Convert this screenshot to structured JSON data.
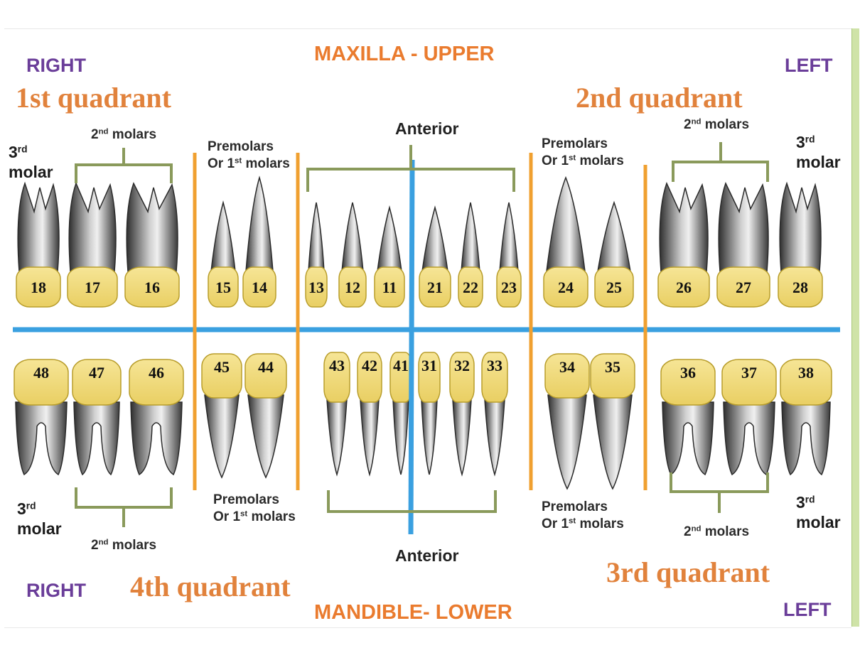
{
  "jaws": {
    "upper": "MAXILLA - UPPER",
    "lower": "MANDIBLE- LOWER"
  },
  "sides": {
    "top_right": "RIGHT",
    "top_left": "LEFT",
    "bottom_right": "RIGHT",
    "bottom_left": "LEFT"
  },
  "quadrants": {
    "q1": "1st quadrant",
    "q2": "2nd quadrant",
    "q3": "3rd quadrant",
    "q4": "4th quadrant"
  },
  "anterior": {
    "top": "Anterior",
    "bottom": "Anterior"
  },
  "groups": {
    "molars_ord": "2",
    "molars_sup": "nd",
    "molars_word": " molars",
    "premolars_line1": "Premolars",
    "premolars_line2_pre": "Or 1",
    "premolars_line2_sup": "st",
    "premolars_line2_post": " molars",
    "third_ord": "3",
    "third_sup": "rd",
    "third_word": "molar"
  },
  "teeth": {
    "upper": [
      "18",
      "17",
      "16",
      "15",
      "14",
      "13",
      "12",
      "11",
      "21",
      "22",
      "23",
      "24",
      "25",
      "26",
      "27",
      "28"
    ],
    "lower": [
      "48",
      "47",
      "46",
      "45",
      "44",
      "43",
      "42",
      "41",
      "31",
      "32",
      "33",
      "34",
      "35",
      "36",
      "37",
      "38"
    ]
  },
  "colors": {
    "crown": "#f1dd83",
    "crown_stroke": "#b89d2b",
    "root_dark": "#3c3c3c",
    "root_light": "#d9d9d9",
    "midline": "#3aa0e0",
    "divider": "#f0a030",
    "bracket": "#8a9a5b"
  }
}
